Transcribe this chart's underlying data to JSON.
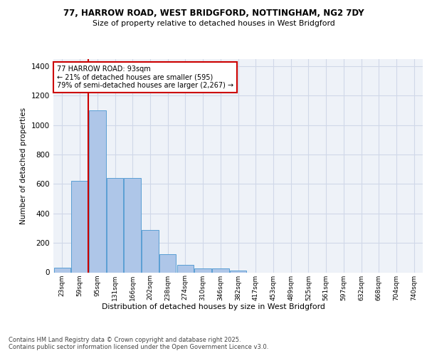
{
  "title_line1": "77, HARROW ROAD, WEST BRIDGFORD, NOTTINGHAM, NG2 7DY",
  "title_line2": "Size of property relative to detached houses in West Bridgford",
  "xlabel": "Distribution of detached houses by size in West Bridgford",
  "ylabel": "Number of detached properties",
  "categories": [
    "23sqm",
    "59sqm",
    "95sqm",
    "131sqm",
    "166sqm",
    "202sqm",
    "238sqm",
    "274sqm",
    "310sqm",
    "346sqm",
    "382sqm",
    "417sqm",
    "453sqm",
    "489sqm",
    "525sqm",
    "561sqm",
    "597sqm",
    "632sqm",
    "668sqm",
    "704sqm",
    "740sqm"
  ],
  "values": [
    30,
    620,
    1100,
    640,
    640,
    290,
    125,
    50,
    25,
    25,
    10,
    0,
    0,
    0,
    0,
    0,
    0,
    0,
    0,
    0,
    0
  ],
  "bar_color": "#aec6e8",
  "bar_edge_color": "#5a9fd4",
  "grid_color": "#d0d8e8",
  "bg_color": "#eef2f8",
  "vline_color": "#cc0000",
  "vline_index": 1.5,
  "annotation_text": "77 HARROW ROAD: 93sqm\n← 21% of detached houses are smaller (595)\n79% of semi-detached houses are larger (2,267) →",
  "annotation_box_color": "#cc0000",
  "footnote": "Contains HM Land Registry data © Crown copyright and database right 2025.\nContains public sector information licensed under the Open Government Licence v3.0.",
  "ylim": [
    0,
    1450
  ],
  "yticks": [
    0,
    200,
    400,
    600,
    800,
    1000,
    1200,
    1400
  ]
}
